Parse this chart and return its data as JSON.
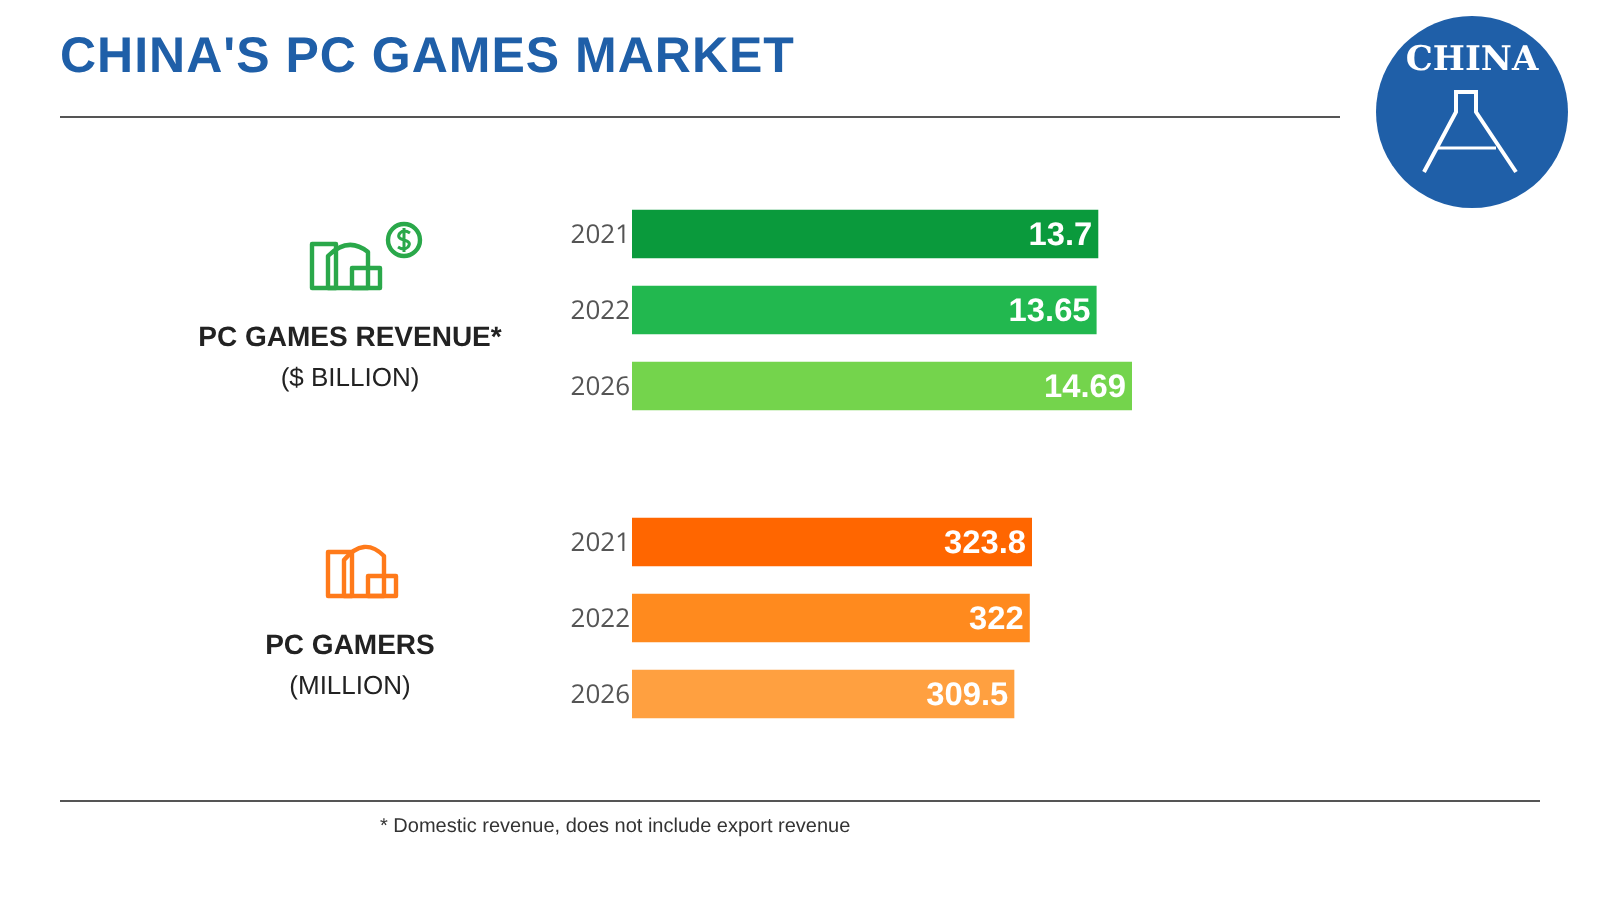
{
  "chart_data": [
    {
      "type": "bar",
      "orientation": "horizontal",
      "title": "CHINA'S PC GAMES MARKET",
      "ylabel": "PC GAMES REVENUE*\n($ BILLION)",
      "categories": [
        "2021",
        "2022",
        "2026"
      ],
      "values": [
        13.7,
        13.65,
        14.69
      ],
      "colors": [
        "#0a9a3c",
        "#22b84f",
        "#74d44c"
      ],
      "data_labels": true,
      "annotations": [
        "CHINA"
      ]
    },
    {
      "type": "bar",
      "orientation": "horizontal",
      "ylabel": "PC GAMERS\n(MILLION)",
      "categories": [
        "2021",
        "2022",
        "2026"
      ],
      "values": [
        323.8,
        322,
        309.5
      ],
      "colors": [
        "#ff6600",
        "#ff8a1e",
        "#ffa040"
      ],
      "data_labels": true,
      "annotations": [
        "* Domestic revenue, does not include export revenue"
      ]
    }
  ]
}
